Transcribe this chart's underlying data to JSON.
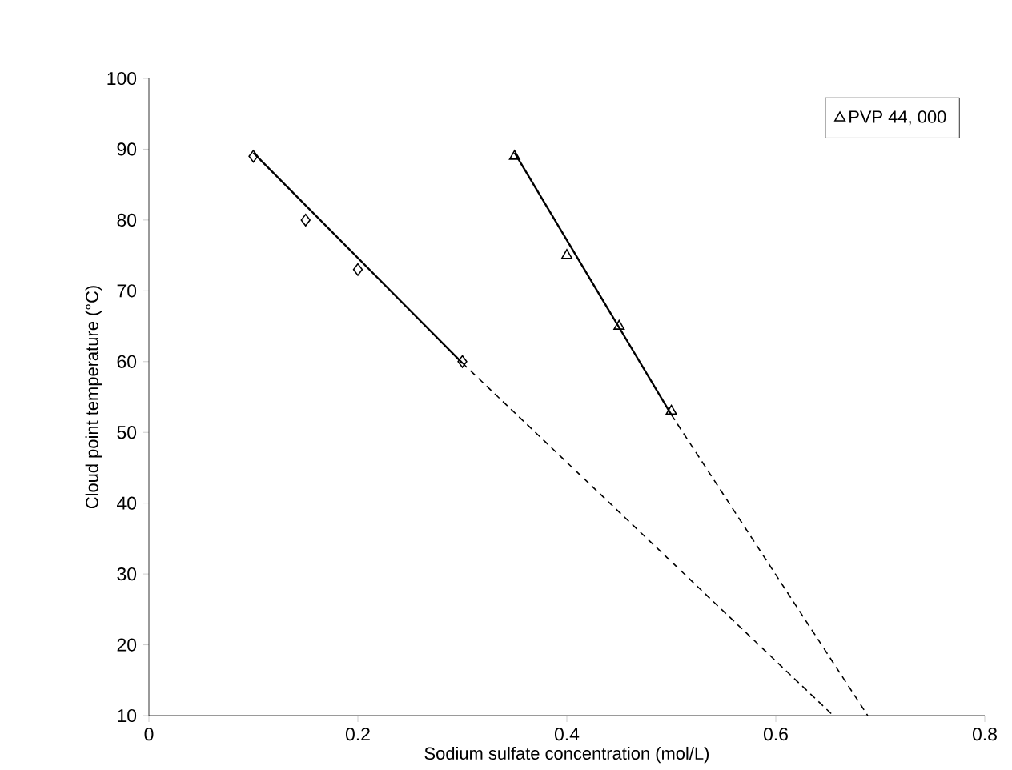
{
  "chart_data": {
    "type": "scatter",
    "xlabel": "Sodium sulfate concentration (mol/L)",
    "ylabel": "Cloud point temperature (°C)",
    "xlim": [
      0,
      0.8
    ],
    "xticks": [
      0,
      0.2,
      0.4,
      0.6,
      0.8
    ],
    "ylim": [
      10,
      100
    ],
    "yticks": [
      10,
      20,
      30,
      40,
      50,
      60,
      70,
      80,
      90,
      100
    ],
    "legend": "top right",
    "series": [
      {
        "marker": "diamond",
        "color": "#000000",
        "x": [
          0.1,
          0.15,
          0.2,
          0.3
        ],
        "values": [
          89,
          80,
          73,
          60
        ]
      },
      {
        "name": "PVP 44, 000",
        "marker": "triangle",
        "color": "#000000",
        "x": [
          0.35,
          0.4,
          0.45,
          0.5
        ],
        "values": [
          89,
          75,
          65,
          53
        ]
      },
      {
        "type": "line",
        "marker": "none",
        "line_style": "solid",
        "color": "#000000",
        "x": [
          0.1,
          0.3
        ],
        "values": [
          89.5,
          59.8
        ]
      },
      {
        "type": "line",
        "marker": "none",
        "line_style": "dashed",
        "color": "#000000",
        "x": [
          0.3,
          0.655
        ],
        "values": [
          59.8,
          10
        ]
      },
      {
        "type": "line",
        "marker": "none",
        "line_style": "solid",
        "color": "#000000",
        "x": [
          0.35,
          0.5
        ],
        "values": [
          89.5,
          52.5
        ]
      },
      {
        "type": "line",
        "marker": "none",
        "line_style": "dashed",
        "color": "#000000",
        "x": [
          0.5,
          0.688
        ],
        "values": [
          52.5,
          10
        ]
      }
    ]
  }
}
